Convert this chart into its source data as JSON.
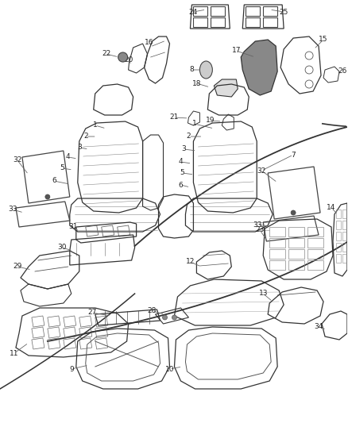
{
  "background_color": "#ffffff",
  "fig_width": 4.38,
  "fig_height": 5.33,
  "dpi": 100,
  "line_color": "#444444",
  "label_color": "#222222",
  "font_size": 6.5
}
